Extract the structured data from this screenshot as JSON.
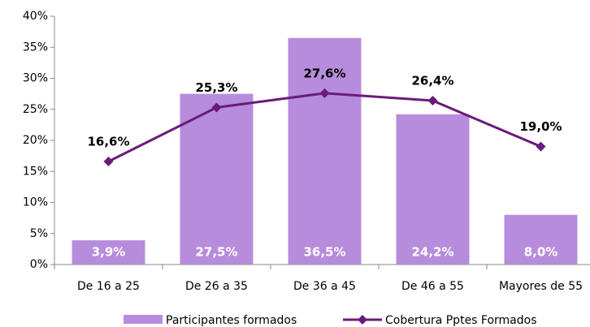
{
  "chart_data": {
    "type": "bar",
    "categories": [
      "De 16 a 25",
      "De 26 a 35",
      "De 36 a 45",
      "De 46 a 55",
      "Mayores de 55"
    ],
    "series": [
      {
        "name": "Participantes formados",
        "type": "bar",
        "color": "#b88cdc",
        "values": [
          3.9,
          27.5,
          36.5,
          24.2,
          8.0
        ],
        "value_labels": [
          "3,9%",
          "27,5%",
          "36,5%",
          "24,2%",
          "8,0%"
        ]
      },
      {
        "name": "Cobertura Pptes Formados",
        "type": "line",
        "color": "#6a1b7a",
        "values": [
          16.6,
          25.3,
          27.6,
          26.4,
          19.0
        ],
        "value_labels": [
          "16,6%",
          "25,3%",
          "27,6%",
          "26,4%",
          "19,0%"
        ]
      }
    ],
    "ylim": [
      0,
      40
    ],
    "yticks": [
      {
        "value": 0,
        "label": "0%"
      },
      {
        "value": 5,
        "label": "5%"
      },
      {
        "value": 10,
        "label": "10%"
      },
      {
        "value": 15,
        "label": "15%"
      },
      {
        "value": 20,
        "label": "20%"
      },
      {
        "value": 25,
        "label": "25%"
      },
      {
        "value": 30,
        "label": "30%"
      },
      {
        "value": 35,
        "label": "35%"
      },
      {
        "value": 40,
        "label": "40%"
      }
    ],
    "grid": false,
    "legend": "bottom"
  }
}
